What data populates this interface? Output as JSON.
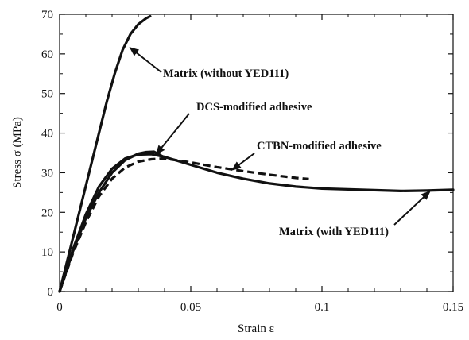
{
  "chart_data": {
    "type": "line",
    "xlabel": "Strain ε",
    "ylabel": "Stress σ (MPa)",
    "xlim": [
      0,
      0.15
    ],
    "ylim": [
      0,
      70
    ],
    "grid": false,
    "x_ticks": [
      {
        "value": 0,
        "label": "0"
      },
      {
        "value": 0.05,
        "label": "0.05"
      },
      {
        "value": 0.1,
        "label": "0.1"
      },
      {
        "value": 0.15,
        "label": "0.15"
      }
    ],
    "y_ticks": [
      {
        "value": 0,
        "label": "0"
      },
      {
        "value": 10,
        "label": "10"
      },
      {
        "value": 20,
        "label": "20"
      },
      {
        "value": 30,
        "label": "30"
      },
      {
        "value": 40,
        "label": "40"
      },
      {
        "value": 50,
        "label": "50"
      },
      {
        "value": 60,
        "label": "60"
      },
      {
        "value": 70,
        "label": "70"
      }
    ],
    "series": [
      {
        "name": "Matrix (without YED111)",
        "style": "solid",
        "color": "#111111",
        "points": [
          [
            0,
            0
          ],
          [
            0.003,
            8
          ],
          [
            0.006,
            16
          ],
          [
            0.009,
            24
          ],
          [
            0.012,
            32
          ],
          [
            0.015,
            40
          ],
          [
            0.018,
            48
          ],
          [
            0.021,
            55
          ],
          [
            0.024,
            61
          ],
          [
            0.027,
            65
          ],
          [
            0.03,
            67.5
          ],
          [
            0.033,
            69
          ],
          [
            0.0345,
            69.5
          ]
        ]
      },
      {
        "name": "DCS-modified adhesive",
        "style": "solid",
        "color": "#111111",
        "points": [
          [
            0,
            0
          ],
          [
            0.005,
            10
          ],
          [
            0.01,
            18.5
          ],
          [
            0.015,
            25
          ],
          [
            0.02,
            30
          ],
          [
            0.025,
            33.2
          ],
          [
            0.03,
            34.8
          ],
          [
            0.033,
            35.2
          ],
          [
            0.036,
            35.3
          ],
          [
            0.038,
            34.6
          ],
          [
            0.04,
            33.8
          ]
        ]
      },
      {
        "name": "CTBN-modified adhesive",
        "style": "dashed",
        "color": "#111111",
        "points": [
          [
            0,
            0
          ],
          [
            0.005,
            9.5
          ],
          [
            0.01,
            17.5
          ],
          [
            0.015,
            24
          ],
          [
            0.02,
            28.5
          ],
          [
            0.025,
            31.3
          ],
          [
            0.03,
            32.8
          ],
          [
            0.035,
            33.4
          ],
          [
            0.04,
            33.6
          ],
          [
            0.05,
            32.6
          ],
          [
            0.06,
            31.4
          ],
          [
            0.07,
            30.4
          ],
          [
            0.08,
            29.5
          ],
          [
            0.09,
            28.7
          ],
          [
            0.095,
            28.4
          ]
        ]
      },
      {
        "name": "Matrix (with YED111)",
        "style": "solid",
        "color": "#111111",
        "points": [
          [
            0,
            0
          ],
          [
            0.005,
            10.5
          ],
          [
            0.01,
            19.5
          ],
          [
            0.015,
            26.5
          ],
          [
            0.02,
            31
          ],
          [
            0.025,
            33.6
          ],
          [
            0.03,
            34.6
          ],
          [
            0.035,
            34.7
          ],
          [
            0.04,
            34
          ],
          [
            0.05,
            32
          ],
          [
            0.06,
            30
          ],
          [
            0.07,
            28.5
          ],
          [
            0.08,
            27.3
          ],
          [
            0.09,
            26.5
          ],
          [
            0.1,
            26
          ],
          [
            0.11,
            25.8
          ],
          [
            0.12,
            25.6
          ],
          [
            0.13,
            25.4
          ],
          [
            0.14,
            25.5
          ],
          [
            0.15,
            25.7
          ]
        ]
      }
    ],
    "annotations": [
      {
        "text": "Matrix (without YED111)",
        "target": [
          0.027,
          61.5
        ]
      },
      {
        "text": "DCS-modified adhesive",
        "target": [
          0.037,
          34.8
        ]
      },
      {
        "text": "CTBN-modified adhesive",
        "target": [
          0.066,
          30.8
        ]
      },
      {
        "text": "Matrix (with YED111)",
        "target": [
          0.141,
          25.2
        ]
      }
    ]
  }
}
